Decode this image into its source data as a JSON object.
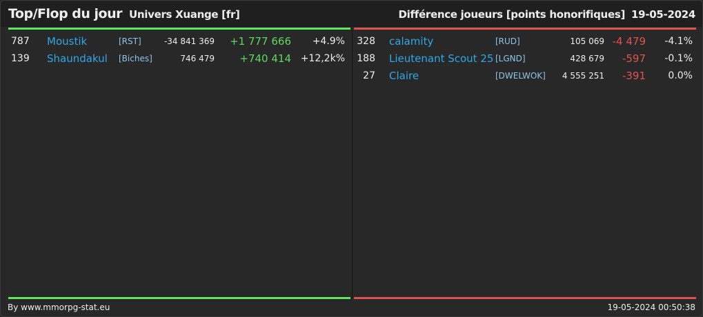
{
  "header": {
    "title": "Top/Flop du jour",
    "subtitle": "Univers Xuange [fr]",
    "right_title": "Différence joueurs [points honorifiques]",
    "date": "19-05-2024"
  },
  "top": {
    "rows": [
      [
        "787",
        "Moustik",
        "[RST]",
        "-34 841 369",
        "+1 777 666",
        "+4.9%"
      ],
      [
        "139",
        "Shaundakul",
        "[Biches]",
        "746 479",
        "+740 414",
        "+12,2k%"
      ]
    ]
  },
  "flop": {
    "rows": [
      [
        "328",
        "calamity",
        "[RUD]",
        "105 069",
        "-4 479",
        "-4.1%"
      ],
      [
        "188",
        "Lieutenant Scout 25",
        "[LGND]",
        "428 679",
        "-597",
        "-0.1%"
      ],
      [
        "27",
        "Claire",
        "[DWELWOK]",
        "4 555 251",
        "-391",
        "0.0%"
      ]
    ]
  },
  "footer": {
    "left": "By www.mmorpg-stat.eu",
    "right": "19-05-2024 00:50:38"
  }
}
